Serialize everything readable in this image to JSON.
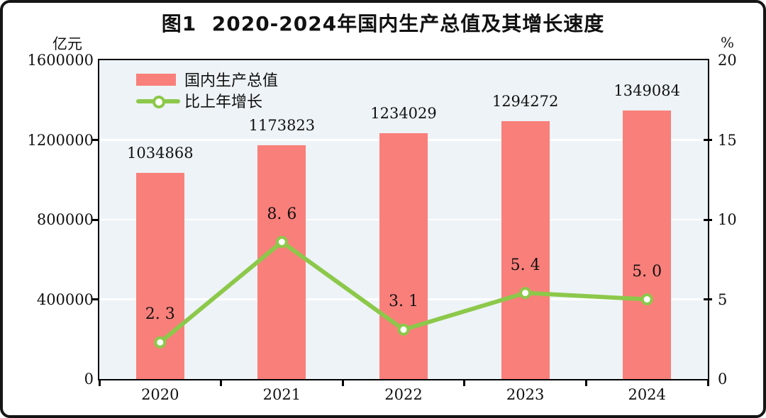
{
  "figure": {
    "title": "图1  2020-2024年国内生产总值及其增长速度"
  },
  "left_axis": {
    "unit": "亿元",
    "tick_labels": [
      "1600000",
      "1200000",
      "800000",
      "400000",
      "0"
    ]
  },
  "right_axis": {
    "unit": "%",
    "tick_labels": [
      "20",
      "15",
      "10",
      "5",
      "0"
    ]
  },
  "legend": {
    "items": [
      {
        "label": "国内生产总值",
        "marker": "bar-swatch"
      },
      {
        "label": "比上年增长",
        "marker": "line-with-circle"
      }
    ]
  },
  "chart_data": {
    "type": "bar+line combo",
    "categories": [
      "2020",
      "2021",
      "2022",
      "2023",
      "2024"
    ],
    "series": [
      {
        "name": "国内生产总值",
        "type": "bar",
        "axis": "left",
        "unit": "亿元",
        "values": [
          1034868,
          1173823,
          1234029,
          1294272,
          1349084
        ],
        "data_labels": [
          "1034868",
          "1173823",
          "1234029",
          "1294272",
          "1349084"
        ]
      },
      {
        "name": "比上年增长",
        "type": "line",
        "axis": "right",
        "unit": "%",
        "values": [
          2.3,
          8.6,
          3.1,
          5.4,
          5.0
        ],
        "data_labels": [
          "2. 3",
          "8. 6",
          "3. 1",
          "5. 4",
          "5. 0"
        ],
        "marker": "circle-white-fill"
      }
    ],
    "left_ylim": [
      0,
      1600000
    ],
    "left_tick_step": 400000,
    "right_ylim": [
      0,
      20
    ],
    "right_tick_step": 5,
    "grid": "horizontal white lines at left-axis ticks",
    "legend_position": "top-left inside plot"
  },
  "colors": {
    "bar": "#f97f7a",
    "line": "#8cc84a",
    "marker_fill": "#ffffff",
    "plot_background": "#edf3f6",
    "grid_line": "#ffffff",
    "axis_frame": "#000000",
    "text": "#111111",
    "outer_border": "#151515",
    "page_background": "#ffffff"
  }
}
